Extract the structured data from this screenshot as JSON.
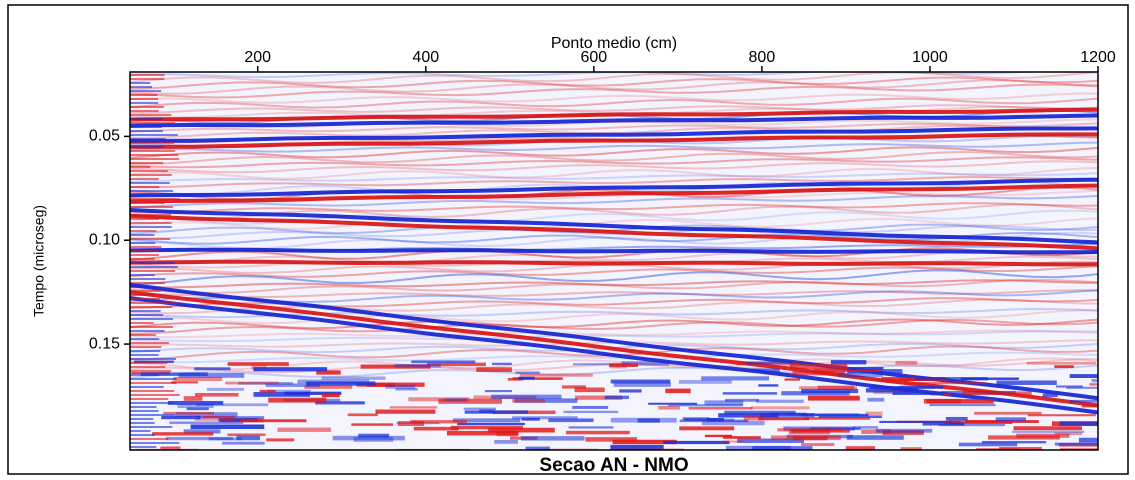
{
  "chart_data": {
    "type": "image",
    "title": "Secao AN - NMO",
    "x_label": "Ponto medio (cm)",
    "y_label": "Tempo (microseg)",
    "xlim": [
      48,
      1200
    ],
    "xticks": [
      200,
      400,
      600,
      800,
      1000,
      1200
    ],
    "ylim": [
      0.019,
      0.201
    ],
    "yticks": [
      0.05,
      {
        "value": 0.1,
        "label": "0.10"
      },
      0.15
    ],
    "y_inverted": true,
    "x_axis_position": "top"
  }
}
